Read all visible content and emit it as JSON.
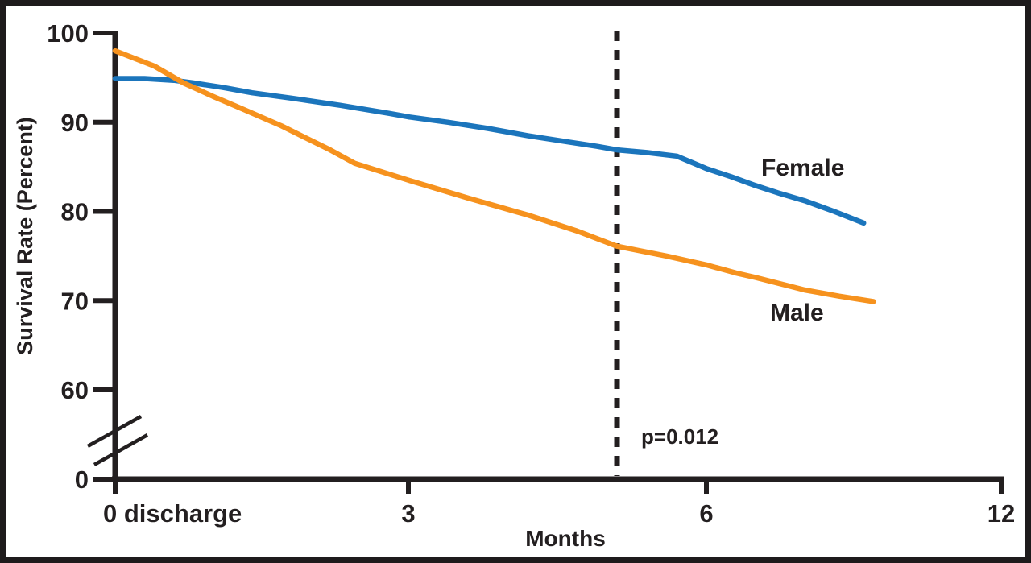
{
  "chart_data": {
    "type": "line",
    "title": "",
    "xlabel": "Months",
    "ylabel": "Survival Rate (Percent)",
    "grid": false,
    "ink_color": "#231F20",
    "frame_color": "#1E1B1C",
    "x_axis": {
      "range": [
        0,
        12
      ],
      "scale_note": "axis is compressed after month 6 (6-12 occupies same width as 3-6)",
      "ticks": [
        {
          "value": 0,
          "label": "0 discharge"
        },
        {
          "value": 3,
          "label": "3"
        },
        {
          "value": 6,
          "label": "6"
        },
        {
          "value": 12,
          "label": "12"
        }
      ]
    },
    "y_axis": {
      "range_shown": [
        60,
        100
      ],
      "axis_break_between": [
        0,
        60
      ],
      "ticks": [
        {
          "value": 100,
          "label": "100"
        },
        {
          "value": 90,
          "label": "90"
        },
        {
          "value": 80,
          "label": "80"
        },
        {
          "value": 70,
          "label": "70"
        },
        {
          "value": 60,
          "label": "60"
        },
        {
          "value": 0,
          "label": "0"
        }
      ]
    },
    "series": [
      {
        "name": "Female",
        "color": "#1B75BC",
        "points": [
          [
            0,
            94.9
          ],
          [
            0.3,
            94.9
          ],
          [
            0.6,
            94.7
          ],
          [
            0.8,
            94.4
          ],
          [
            1.1,
            93.9
          ],
          [
            1.4,
            93.3
          ],
          [
            1.8,
            92.7
          ],
          [
            2.3,
            91.9
          ],
          [
            2.8,
            91.0
          ],
          [
            3.0,
            90.6
          ],
          [
            3.4,
            90.0
          ],
          [
            3.8,
            89.3
          ],
          [
            4.2,
            88.5
          ],
          [
            4.6,
            87.8
          ],
          [
            4.9,
            87.3
          ],
          [
            5.1,
            86.9
          ],
          [
            5.4,
            86.6
          ],
          [
            5.7,
            86.2
          ],
          [
            6.0,
            84.8
          ],
          [
            6.5,
            83.9
          ],
          [
            7.0,
            82.9
          ],
          [
            7.5,
            82.0
          ],
          [
            8.0,
            81.2
          ],
          [
            8.6,
            80.0
          ],
          [
            9.2,
            78.7
          ]
        ]
      },
      {
        "name": "Male",
        "color": "#F6921E",
        "points": [
          [
            0,
            98.0
          ],
          [
            0.4,
            96.3
          ],
          [
            0.7,
            94.4
          ],
          [
            1.0,
            92.9
          ],
          [
            1.3,
            91.5
          ],
          [
            1.7,
            89.6
          ],
          [
            2.2,
            86.9
          ],
          [
            2.45,
            85.4
          ],
          [
            3.0,
            83.5
          ],
          [
            3.6,
            81.5
          ],
          [
            4.2,
            79.6
          ],
          [
            4.7,
            77.8
          ],
          [
            5.1,
            76.1
          ],
          [
            5.6,
            75.0
          ],
          [
            6.0,
            74.0
          ],
          [
            6.6,
            73.1
          ],
          [
            7.0,
            72.6
          ],
          [
            8.0,
            71.2
          ],
          [
            8.7,
            70.5
          ],
          [
            9.4,
            69.9
          ]
        ]
      }
    ],
    "annotation": {
      "text": "p=0.012",
      "line_style": "dashed-vertical",
      "x_month": 5.1
    }
  }
}
